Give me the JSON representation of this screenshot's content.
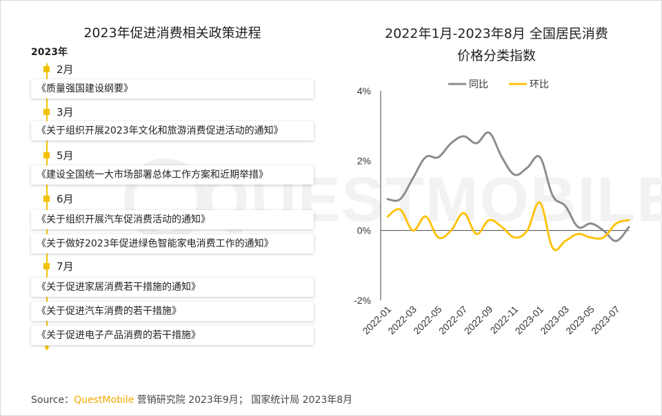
{
  "left_panel": {
    "title": "2023年促进消费相关政策进程",
    "year": "2023年",
    "groups": [
      {
        "month": "2月",
        "items": [
          "《质量强国建设纲要》"
        ]
      },
      {
        "month": "3月",
        "items": [
          "《关于组织开展2023年文化和旅游消费促进活动的通知》"
        ]
      },
      {
        "month": "5月",
        "items": [
          "《建设全国统一大市场部署总体工作方案和近期举措》"
        ]
      },
      {
        "month": "6月",
        "items": [
          "《关于组织开展汽车促消费活动的通知》",
          "《关于做好2023年促进绿色智能家电消费工作的通知》"
        ]
      },
      {
        "month": "7月",
        "items": [
          "《关于促进家居消费若干措施的通知》",
          "《关于促进汽车消费的若干措施》",
          "《关于促进电子产品消费的若干措施》"
        ]
      }
    ]
  },
  "right_panel": {
    "title_line1": "2022年1月-2023年8月 全国居民消费",
    "title_line2": "价格分类指数"
  },
  "colors": {
    "accent": "#f2c200",
    "series_yoy": "#8c8c8c",
    "series_mom": "#ffc20e"
  },
  "watermark_text": "QUESTMOBILE",
  "chart_data": {
    "type": "line",
    "title": "2022年1月-2023年8月 全国居民消费价格分类指数",
    "x": [
      "2022-01",
      "2022-02",
      "2022-03",
      "2022-04",
      "2022-05",
      "2022-06",
      "2022-07",
      "2022-08",
      "2022-09",
      "2022-10",
      "2022-11",
      "2022-12",
      "2023-01",
      "2023-02",
      "2023-03",
      "2023-04",
      "2023-05",
      "2023-06",
      "2023-07",
      "2023-08"
    ],
    "x_tick_labels": [
      "2022-01",
      "2022-03",
      "2022-05",
      "2022-07",
      "2022-09",
      "2022-11",
      "2023-01",
      "2023-03",
      "2023-05",
      "2023-07"
    ],
    "series": [
      {
        "name": "同比",
        "values": [
          0.9,
          0.9,
          1.5,
          2.1,
          2.1,
          2.5,
          2.7,
          2.5,
          2.8,
          2.1,
          1.6,
          1.8,
          2.1,
          1.0,
          0.7,
          0.1,
          0.2,
          0.0,
          -0.3,
          0.1
        ]
      },
      {
        "name": "环比",
        "values": [
          0.4,
          0.6,
          0.0,
          0.4,
          -0.2,
          0.0,
          0.5,
          -0.1,
          0.3,
          0.1,
          -0.2,
          0.0,
          0.8,
          -0.5,
          -0.3,
          -0.1,
          -0.2,
          -0.2,
          0.2,
          0.3
        ]
      }
    ],
    "y_ticks": [
      "4%",
      "2%",
      "0%",
      "-2%"
    ],
    "ylim": [
      -2,
      4
    ],
    "legend": [
      "同比",
      "环比"
    ],
    "legend_position": "top"
  },
  "source": {
    "prefix": "Source：",
    "brand": "QuestMobile",
    "suffix": " 营销研究院 2023年9月；  国家统计局 2023年8月"
  }
}
